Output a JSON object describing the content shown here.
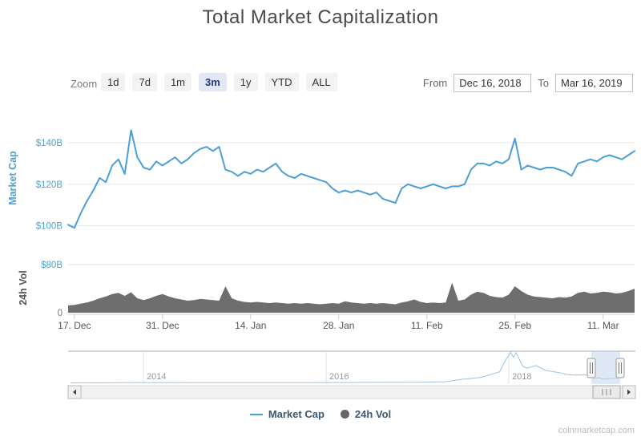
{
  "title": "Total Market Capitalization",
  "toolbar": {
    "zoom_label": "Zoom",
    "buttons": [
      {
        "label": "1d",
        "selected": false
      },
      {
        "label": "7d",
        "selected": false
      },
      {
        "label": "1m",
        "selected": false
      },
      {
        "label": "3m",
        "selected": true
      },
      {
        "label": "1y",
        "selected": false
      },
      {
        "label": "YTD",
        "selected": false
      },
      {
        "label": "ALL",
        "selected": false
      }
    ],
    "from_label": "From",
    "from_value": "Dec 16, 2018",
    "to_label": "To",
    "to_value": "Mar 16, 2019"
  },
  "legend": {
    "items": [
      {
        "label": "Market Cap",
        "marker": "line"
      },
      {
        "label": "24h Vol",
        "marker": "circle"
      }
    ]
  },
  "watermark": "coinmarketcap.com",
  "colors": {
    "market_cap_line": "#4A9FD8",
    "volume_area": "#6E6E6E",
    "axis_label_blue": "#4FA0CD",
    "axis_label_gray": "#777777",
    "legend_text": "#3E576F",
    "selected_button_bg": "#E3E8F7",
    "selected_button_text": "#26397E",
    "navigator_selection": "#BFD4EC"
  },
  "chart_data": {
    "type": "line",
    "title": "Total Market Capitalization",
    "x": {
      "start": "Dec 16, 2018",
      "end": "Mar 16, 2019",
      "total_days": 90,
      "tick_labels": [
        "17. Dec",
        "31. Dec",
        "14. Jan",
        "28. Jan",
        "11. Feb",
        "25. Feb",
        "11. Mar"
      ],
      "tick_days": [
        1,
        15,
        29,
        43,
        57,
        71,
        85
      ]
    },
    "series": [
      {
        "name": "Market Cap",
        "type": "line",
        "color": "#4A9FD8",
        "axis_title": "Market Cap",
        "unit": "$B",
        "ylim": [
          96,
          150
        ],
        "yticks": [
          {
            "value": 100,
            "label": "$100B"
          },
          {
            "value": 120,
            "label": "$120B"
          },
          {
            "value": 140,
            "label": "$140B"
          }
        ],
        "values": [
          100.5,
          99,
          106,
          112,
          117,
          123,
          121,
          129,
          132,
          125,
          146,
          133,
          128,
          127,
          131,
          129,
          131,
          133,
          130,
          132,
          135,
          137,
          138,
          136,
          138,
          127,
          126,
          124,
          126,
          125,
          127,
          126,
          128,
          130,
          126,
          124,
          123,
          125,
          124,
          123,
          122,
          121,
          118,
          116,
          117,
          116,
          117,
          116,
          115,
          116,
          113,
          112,
          111,
          118,
          120,
          119,
          118,
          119,
          120,
          119,
          118,
          119,
          119,
          120,
          127,
          130,
          130,
          129,
          131,
          130,
          132,
          142,
          127,
          129,
          128,
          127,
          128,
          128,
          127,
          126,
          124,
          130,
          131,
          132,
          131,
          133,
          134,
          133,
          132,
          134,
          136
        ]
      },
      {
        "name": "24h Vol",
        "type": "area",
        "color": "#6E6E6E",
        "axis_title": "24h Vol",
        "unit": "$B",
        "ylim": [
          0,
          80
        ],
        "yticks": [
          {
            "value": 0,
            "label": "0"
          },
          {
            "value": 80,
            "label": "$80B"
          }
        ],
        "values": [
          12,
          13,
          15,
          17,
          20,
          24,
          27,
          31,
          33,
          28,
          34,
          24,
          21,
          24,
          28,
          31,
          27,
          24,
          22,
          20,
          21,
          23,
          22,
          21,
          20,
          44,
          24,
          20,
          18,
          17,
          18,
          17,
          16,
          17,
          16,
          15,
          16,
          15,
          16,
          15,
          14,
          15,
          16,
          15,
          19,
          17,
          16,
          15,
          16,
          15,
          16,
          15,
          14,
          17,
          19,
          22,
          18,
          16,
          17,
          16,
          17,
          50,
          20,
          22,
          30,
          35,
          33,
          28,
          26,
          25,
          30,
          44,
          36,
          30,
          27,
          26,
          25,
          24,
          26,
          25,
          27,
          33,
          35,
          32,
          33,
          35,
          34,
          32,
          33,
          36,
          40
        ]
      }
    ],
    "navigator": {
      "year_labels": [
        "2014",
        "2016",
        "2018"
      ],
      "range_start": "Dec 16, 2018",
      "range_end": "Mar 16, 2019",
      "series_year_value_billions": [
        [
          2013.2,
          1
        ],
        [
          2014,
          8
        ],
        [
          2015,
          5
        ],
        [
          2015.5,
          4
        ],
        [
          2016,
          8
        ],
        [
          2016.5,
          12
        ],
        [
          2017,
          18
        ],
        [
          2017.3,
          30
        ],
        [
          2017.5,
          100
        ],
        [
          2017.7,
          150
        ],
        [
          2017.9,
          300
        ],
        [
          2017.96,
          600
        ],
        [
          2018.02,
          830
        ],
        [
          2018.05,
          700
        ],
        [
          2018.08,
          820
        ],
        [
          2018.15,
          460
        ],
        [
          2018.2,
          400
        ],
        [
          2018.3,
          470
        ],
        [
          2018.4,
          340
        ],
        [
          2018.55,
          280
        ],
        [
          2018.65,
          220
        ],
        [
          2018.75,
          210
        ],
        [
          2018.85,
          215
        ],
        [
          2018.92,
          140
        ],
        [
          2019.0,
          130
        ],
        [
          2019.04,
          101
        ],
        [
          2019.1,
          120
        ],
        [
          2019.15,
          122
        ],
        [
          2019.2,
          135
        ]
      ]
    }
  }
}
